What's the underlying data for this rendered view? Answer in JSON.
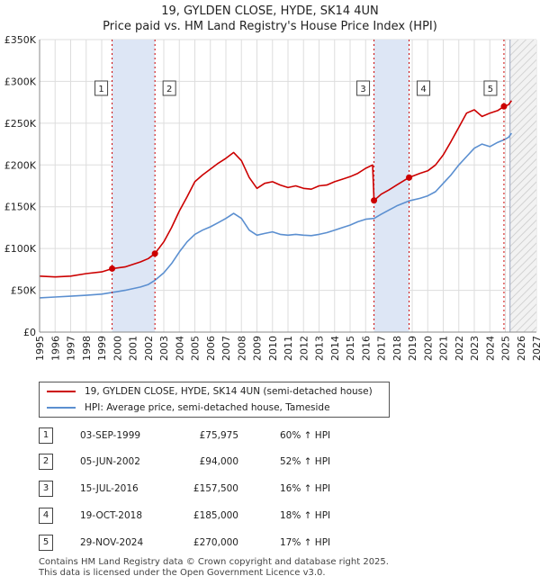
{
  "chart_data": {
    "type": "line",
    "title": "19, GYLDEN CLOSE, HYDE, SK14 4UN",
    "subtitle": "Price paid vs. HM Land Registry's House Price Index (HPI)",
    "xlim": [
      1995,
      2027
    ],
    "ylim": [
      0,
      350000
    ],
    "x_ticks": [
      "1995",
      "1996",
      "1997",
      "1998",
      "1999",
      "2000",
      "2001",
      "2002",
      "2003",
      "2004",
      "2005",
      "2006",
      "2007",
      "2008",
      "2009",
      "2010",
      "2011",
      "2012",
      "2013",
      "2014",
      "2015",
      "2016",
      "2017",
      "2018",
      "2019",
      "2020",
      "2021",
      "2022",
      "2023",
      "2024",
      "2025",
      "2026",
      "2027"
    ],
    "y_ticks": [
      {
        "value": 0,
        "label": "£0"
      },
      {
        "value": 50000,
        "label": "£50K"
      },
      {
        "value": 100000,
        "label": "£100K"
      },
      {
        "value": 150000,
        "label": "£150K"
      },
      {
        "value": 200000,
        "label": "£200K"
      },
      {
        "value": 250000,
        "label": "£250K"
      },
      {
        "value": 300000,
        "label": "£300K"
      },
      {
        "value": 350000,
        "label": "£350K"
      }
    ],
    "shaded_periods": [
      [
        1999.67,
        2002.43
      ],
      [
        2016.54,
        2018.8
      ]
    ],
    "future_hatch_start": 2025.3,
    "colors": {
      "property": "#cc0000",
      "hpi": "#5b8fd0",
      "shade": "#dde6f5",
      "grid": "#dddddd",
      "marker_line": "#cc0000"
    },
    "series": [
      {
        "name": "19, GYLDEN CLOSE, HYDE, SK14 4UN (semi-detached house)",
        "x": [
          1995.0,
          1996.0,
          1997.0,
          1998.0,
          1999.0,
          1999.67,
          2000.5,
          2001.5,
          2002.0,
          2002.43,
          2003.0,
          2003.5,
          2004.0,
          2004.5,
          2005.0,
          2005.5,
          2006.0,
          2006.5,
          2007.0,
          2007.5,
          2008.0,
          2008.5,
          2009.0,
          2009.5,
          2010.0,
          2010.5,
          2011.0,
          2011.5,
          2012.0,
          2012.5,
          2013.0,
          2013.5,
          2014.0,
          2014.5,
          2015.0,
          2015.5,
          2016.0,
          2016.45,
          2016.54,
          2017.0,
          2017.5,
          2018.0,
          2018.8,
          2019.5,
          2020.0,
          2020.5,
          2021.0,
          2021.5,
          2022.0,
          2022.5,
          2023.0,
          2023.5,
          2024.0,
          2024.5,
          2024.91,
          2025.2,
          2025.4
        ],
        "values": [
          67000,
          66000,
          67000,
          70000,
          72000,
          75975,
          78000,
          84000,
          88000,
          94000,
          108000,
          125000,
          145000,
          162000,
          180000,
          188000,
          195000,
          202000,
          208000,
          215000,
          205000,
          185000,
          172000,
          178000,
          180000,
          176000,
          173000,
          175000,
          172000,
          171000,
          175000,
          176000,
          180000,
          183000,
          186000,
          190000,
          196000,
          200000,
          157500,
          165000,
          170000,
          176000,
          185000,
          190000,
          193000,
          200000,
          212000,
          228000,
          245000,
          262000,
          266000,
          258000,
          262000,
          265000,
          270000,
          272000,
          277000
        ]
      },
      {
        "name": "HPI: Average price, semi-detached house, Tameside",
        "x": [
          1995.0,
          1996.0,
          1997.0,
          1998.0,
          1999.0,
          1999.67,
          2000.5,
          2001.5,
          2002.0,
          2002.43,
          2003.0,
          2003.5,
          2004.0,
          2004.5,
          2005.0,
          2005.5,
          2006.0,
          2006.5,
          2007.0,
          2007.5,
          2008.0,
          2008.5,
          2009.0,
          2009.5,
          2010.0,
          2010.5,
          2011.0,
          2011.5,
          2012.0,
          2012.5,
          2013.0,
          2013.5,
          2014.0,
          2014.5,
          2015.0,
          2015.5,
          2016.0,
          2016.54,
          2017.0,
          2017.5,
          2018.0,
          2018.8,
          2019.5,
          2020.0,
          2020.5,
          2021.0,
          2021.5,
          2022.0,
          2022.5,
          2023.0,
          2023.5,
          2024.0,
          2024.5,
          2024.91,
          2025.2,
          2025.4
        ],
        "values": [
          41000,
          42000,
          43000,
          44000,
          45500,
          47500,
          50000,
          54000,
          57000,
          62000,
          71000,
          82000,
          96000,
          108000,
          117000,
          122000,
          126000,
          131000,
          136000,
          142000,
          136000,
          122000,
          116000,
          118000,
          120000,
          117000,
          116000,
          117000,
          116000,
          115500,
          117000,
          119000,
          122000,
          125000,
          128000,
          132000,
          135000,
          136000,
          141000,
          146000,
          151000,
          157000,
          160000,
          163000,
          168000,
          178000,
          188000,
          200000,
          210000,
          220000,
          225000,
          222000,
          227000,
          230000,
          233000,
          238000
        ]
      }
    ],
    "sales": [
      {
        "num": "1",
        "x": 1999.67,
        "value": 75975
      },
      {
        "num": "2",
        "x": 2002.43,
        "value": 94000
      },
      {
        "num": "3",
        "x": 2016.54,
        "value": 157500
      },
      {
        "num": "4",
        "x": 2018.8,
        "value": 185000
      },
      {
        "num": "5",
        "x": 2024.91,
        "value": 270000
      }
    ],
    "legend_position": "bottom"
  },
  "legend": {
    "property_label": "19, GYLDEN CLOSE, HYDE, SK14 4UN (semi-detached house)",
    "hpi_label": "HPI: Average price, semi-detached house, Tameside"
  },
  "table": [
    {
      "num": "1",
      "date": "03-SEP-1999",
      "price": "£75,975",
      "hpi": "60% ↑ HPI"
    },
    {
      "num": "2",
      "date": "05-JUN-2002",
      "price": "£94,000",
      "hpi": "52% ↑ HPI"
    },
    {
      "num": "3",
      "date": "15-JUL-2016",
      "price": "£157,500",
      "hpi": "16% ↑ HPI"
    },
    {
      "num": "4",
      "date": "19-OCT-2018",
      "price": "£185,000",
      "hpi": "18% ↑ HPI"
    },
    {
      "num": "5",
      "date": "29-NOV-2024",
      "price": "£270,000",
      "hpi": "17% ↑ HPI"
    }
  ],
  "footer": {
    "line1": "Contains HM Land Registry data © Crown copyright and database right 2025.",
    "line2": "This data is licensed under the Open Government Licence v3.0."
  }
}
